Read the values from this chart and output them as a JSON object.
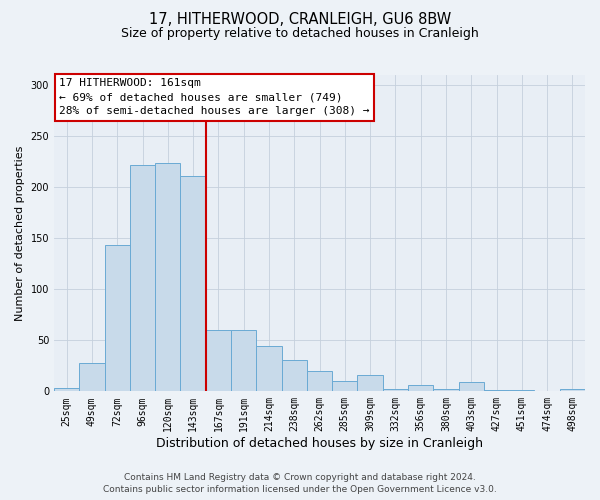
{
  "title": "17, HITHERWOOD, CRANLEIGH, GU6 8BW",
  "subtitle": "Size of property relative to detached houses in Cranleigh",
  "xlabel": "Distribution of detached houses by size in Cranleigh",
  "ylabel": "Number of detached properties",
  "bar_labels": [
    "25sqm",
    "49sqm",
    "72sqm",
    "96sqm",
    "120sqm",
    "143sqm",
    "167sqm",
    "191sqm",
    "214sqm",
    "238sqm",
    "262sqm",
    "285sqm",
    "309sqm",
    "332sqm",
    "356sqm",
    "380sqm",
    "403sqm",
    "427sqm",
    "451sqm",
    "474sqm",
    "498sqm"
  ],
  "bar_heights": [
    3,
    28,
    143,
    222,
    224,
    211,
    60,
    60,
    44,
    31,
    20,
    10,
    16,
    2,
    6,
    2,
    9,
    1,
    1,
    0,
    2
  ],
  "bar_color": "#c8daea",
  "bar_edge_color": "#6aaad4",
  "vline_color": "#cc0000",
  "vline_x": 5.5,
  "annotation_title": "17 HITHERWOOD: 161sqm",
  "annotation_line1": "← 69% of detached houses are smaller (749)",
  "annotation_line2": "28% of semi-detached houses are larger (308) →",
  "annotation_box_color": "#ffffff",
  "annotation_box_edge_color": "#cc0000",
  "ylim": [
    0,
    310
  ],
  "yticks": [
    0,
    50,
    100,
    150,
    200,
    250,
    300
  ],
  "footer1": "Contains HM Land Registry data © Crown copyright and database right 2024.",
  "footer2": "Contains public sector information licensed under the Open Government Licence v3.0.",
  "background_color": "#edf2f7",
  "plot_background_color": "#e8eef5",
  "grid_color": "#c5d0dc",
  "title_fontsize": 10.5,
  "subtitle_fontsize": 9,
  "xlabel_fontsize": 9,
  "ylabel_fontsize": 8,
  "tick_fontsize": 7,
  "annotation_fontsize": 8,
  "footer_fontsize": 6.5
}
